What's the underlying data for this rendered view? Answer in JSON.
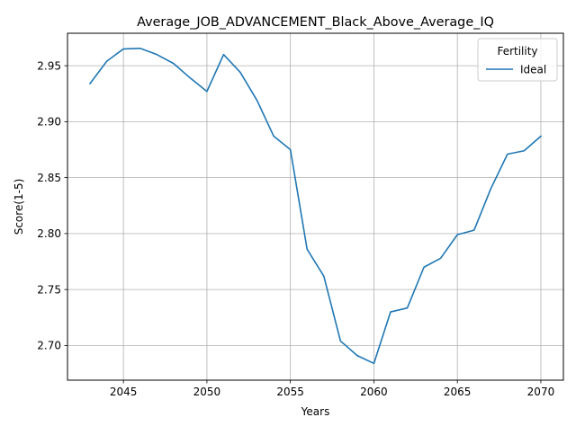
{
  "chart_data": {
    "type": "line",
    "title": "Average_JOB_ADVANCEMENT_Black_Above_Average_IQ",
    "xlabel": "Years",
    "ylabel": "Score(1-5)",
    "xlim": [
      2041.65,
      2071.35
    ],
    "ylim": [
      2.669,
      2.979
    ],
    "xticks": [
      2045,
      2050,
      2055,
      2060,
      2065,
      2070
    ],
    "yticks": [
      2.7,
      2.75,
      2.8,
      2.85,
      2.9,
      2.95
    ],
    "ytick_labels": [
      "2.70",
      "2.75",
      "2.80",
      "2.85",
      "2.90",
      "2.95"
    ],
    "grid": true,
    "legend": {
      "title": "Fertility",
      "position": "top-right"
    },
    "series": [
      {
        "name": "Ideal",
        "color": "#1f77b4",
        "x": [
          2043,
          2044,
          2045,
          2046,
          2047,
          2048,
          2049,
          2050,
          2051,
          2052,
          2053,
          2054,
          2055,
          2056,
          2057,
          2058,
          2059,
          2060,
          2061,
          2062,
          2063,
          2064,
          2065,
          2066,
          2067,
          2068,
          2069,
          2070
        ],
        "y": [
          2.934,
          2.954,
          2.965,
          2.9655,
          2.96,
          2.952,
          2.939,
          2.927,
          2.96,
          2.944,
          2.919,
          2.887,
          2.875,
          2.786,
          2.762,
          2.704,
          2.691,
          2.684,
          2.73,
          2.7335,
          2.77,
          2.778,
          2.799,
          2.803,
          2.84,
          2.871,
          2.874,
          2.887
        ]
      }
    ]
  }
}
